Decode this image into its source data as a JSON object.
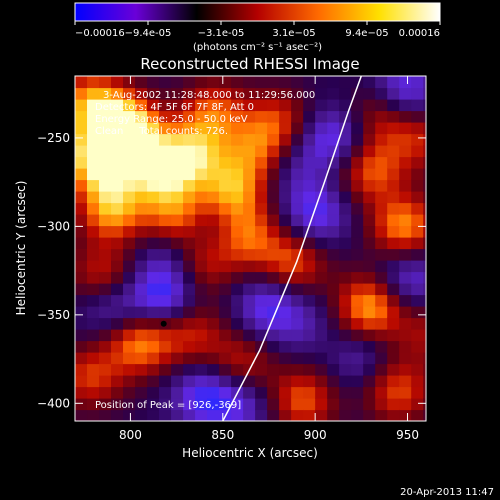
{
  "chart_data": {
    "type": "heatmap",
    "title": "Reconstructed RHESSI Image",
    "xlabel": "Heliocentric X (arcsec)",
    "ylabel": "Heliocentric Y (arcsec)",
    "xlim": [
      770,
      960
    ],
    "ylim": [
      -410,
      -215
    ],
    "x_ticks": [
      800,
      850,
      900,
      950
    ],
    "y_ticks": [
      -250,
      -300,
      -350,
      -400
    ],
    "colorbar": {
      "min": -0.00016,
      "max": 0.00016,
      "tick_labels": [
        "-0.00016",
        "-9.4e-05",
        "-3.1e-05",
        "3.1e-05",
        "9.4e-05",
        "0.00016"
      ],
      "units": "(photons cm⁻² s⁻¹ asec⁻²)",
      "colormap": [
        "#0000ff",
        "#6a00d8",
        "#000000",
        "#b40000",
        "#ff6a00",
        "#ffe000",
        "#ffffff"
      ]
    },
    "annotations": [
      "3-Aug-2002 11:28:48.000 to 11:29:56.000",
      "Detectors: 4F 5F 6F 7F 8F, Att 0",
      "Energy Range: 25.0 - 50.0 keV",
      "Clean     Total counts: 726."
    ],
    "peak_label": "Position of Peak = [926,-369]",
    "peak_position": [
      926,
      -369
    ],
    "limb_curve": [
      [
        850,
        -410
      ],
      [
        870,
        -370
      ],
      [
        890,
        -320
      ],
      [
        905,
        -275
      ],
      [
        918,
        -235
      ],
      [
        925,
        -215
      ]
    ],
    "marker": [
      818,
      -355
    ],
    "sources": [
      {
        "x": 778,
        "y": -230,
        "v": 1.6
      },
      {
        "x": 795,
        "y": -240,
        "v": 1.3
      },
      {
        "x": 783,
        "y": -262,
        "v": 2.4
      },
      {
        "x": 800,
        "y": -250,
        "v": 1.6
      },
      {
        "x": 817,
        "y": -268,
        "v": 1.9
      },
      {
        "x": 835,
        "y": -258,
        "v": 1.5
      },
      {
        "x": 845,
        "y": -235,
        "v": 1.3
      },
      {
        "x": 790,
        "y": -290,
        "v": 1.8
      },
      {
        "x": 825,
        "y": -295,
        "v": 1.6
      },
      {
        "x": 855,
        "y": -280,
        "v": 1.7
      },
      {
        "x": 870,
        "y": -258,
        "v": 1.4
      },
      {
        "x": 862,
        "y": -305,
        "v": 1.5
      },
      {
        "x": 880,
        "y": -240,
        "v": 1.1
      },
      {
        "x": 785,
        "y": -328,
        "v": 1.2
      },
      {
        "x": 838,
        "y": -320,
        "v": 1.2
      },
      {
        "x": 888,
        "y": -320,
        "v": 1.4
      },
      {
        "x": 805,
        "y": -365,
        "v": 1.7
      },
      {
        "x": 833,
        "y": -360,
        "v": 1.1
      },
      {
        "x": 778,
        "y": -385,
        "v": 1.2
      },
      {
        "x": 860,
        "y": -378,
        "v": 1.1
      },
      {
        "x": 893,
        "y": -398,
        "v": 1.4
      },
      {
        "x": 948,
        "y": -300,
        "v": 1.7
      },
      {
        "x": 930,
        "y": -268,
        "v": 1.4
      },
      {
        "x": 937,
        "y": -235,
        "v": 1.2
      },
      {
        "x": 956,
        "y": -250,
        "v": 1.0
      },
      {
        "x": 930,
        "y": -345,
        "v": 1.9
      },
      {
        "x": 945,
        "y": -393,
        "v": 1.3
      },
      {
        "x": 908,
        "y": -365,
        "v": 1.0
      },
      {
        "x": 900,
        "y": -360,
        "v": -1.0
      },
      {
        "x": 920,
        "y": -372,
        "v": -1.0
      },
      {
        "x": 960,
        "y": -360,
        "v": 0.8
      },
      {
        "x": 818,
        "y": -340,
        "v": -1.4
      },
      {
        "x": 822,
        "y": -315,
        "v": -0.9
      },
      {
        "x": 790,
        "y": -345,
        "v": -1.0
      },
      {
        "x": 840,
        "y": -395,
        "v": -1.2
      },
      {
        "x": 875,
        "y": -345,
        "v": -1.2
      },
      {
        "x": 860,
        "y": -400,
        "v": -0.9
      },
      {
        "x": 900,
        "y": -293,
        "v": -1.2
      },
      {
        "x": 910,
        "y": -250,
        "v": -1.2
      },
      {
        "x": 947,
        "y": -225,
        "v": -1.5
      },
      {
        "x": 950,
        "y": -330,
        "v": -1.1
      },
      {
        "x": 885,
        "y": -265,
        "v": -0.8
      },
      {
        "x": 845,
        "y": -300,
        "v": -0.8
      }
    ]
  },
  "footer": {
    "timestamp": "20-Apr-2013 11:47"
  }
}
